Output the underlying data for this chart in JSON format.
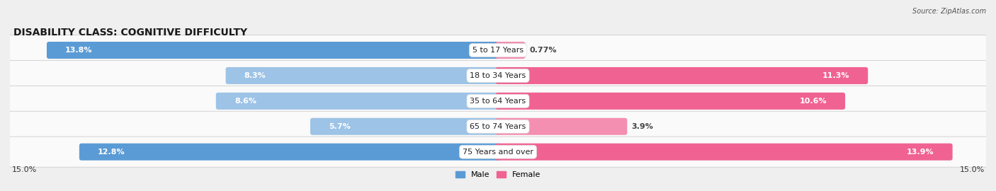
{
  "title": "DISABILITY CLASS: COGNITIVE DIFFICULTY",
  "source": "Source: ZipAtlas.com",
  "categories": [
    "5 to 17 Years",
    "18 to 34 Years",
    "35 to 64 Years",
    "65 to 74 Years",
    "75 Years and over"
  ],
  "male_values": [
    13.8,
    8.3,
    8.6,
    5.7,
    12.8
  ],
  "female_values": [
    0.77,
    11.3,
    10.6,
    3.9,
    13.9
  ],
  "max_val": 15.0,
  "male_color_dark": "#5B9BD5",
  "male_color_light": "#9DC3E6",
  "female_color_dark": "#F06292",
  "female_color_light": "#F48FB1",
  "bg_color": "#EFEFEF",
  "row_bg_color": "#FAFAFA",
  "title_fontsize": 10,
  "bar_label_fontsize": 8,
  "cat_label_fontsize": 8,
  "tick_fontsize": 8,
  "legend_fontsize": 8,
  "dark_threshold_male": 10.0,
  "dark_threshold_female": 5.0
}
